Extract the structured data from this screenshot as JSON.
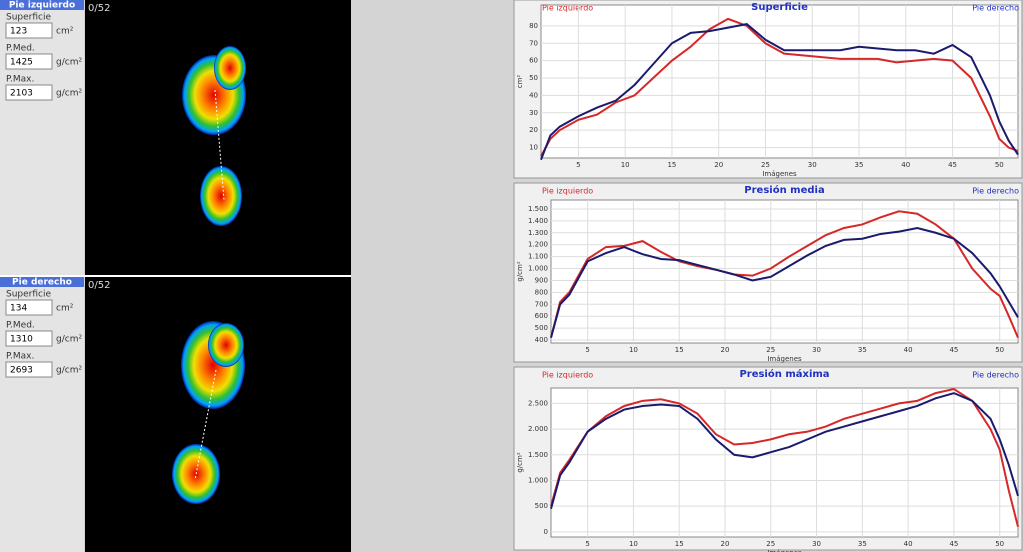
{
  "panels": [
    {
      "header": "Pie izquierdo",
      "frame_label": "0/52",
      "fields": [
        {
          "label": "Superficie",
          "value": 123,
          "unit": "cm²"
        },
        {
          "label": "P.Med.",
          "value": 1425,
          "unit": "g/cm²"
        },
        {
          "label": "P.Max.",
          "value": 2103,
          "unit": "g/cm²"
        }
      ]
    },
    {
      "header": "Pie derecho",
      "frame_label": "0/52",
      "fields": [
        {
          "label": "Superficie",
          "value": 134,
          "unit": "cm²"
        },
        {
          "label": "P.Med.",
          "value": 1310,
          "unit": "g/cm²"
        },
        {
          "label": "P.Max.",
          "value": 2693,
          "unit": "g/cm²"
        }
      ]
    }
  ],
  "chart_data": [
    {
      "type": "line",
      "title": "Superficie",
      "xlabel": "Imágenes",
      "ylabel": "cm²",
      "grid": true,
      "x": [
        1,
        2,
        3,
        5,
        7,
        9,
        11,
        13,
        15,
        17,
        19,
        21,
        23,
        25,
        27,
        29,
        31,
        33,
        35,
        37,
        39,
        41,
        43,
        45,
        47,
        49,
        50,
        51,
        52
      ],
      "xlim": [
        1,
        52
      ],
      "xticks": [
        5,
        10,
        15,
        20,
        25,
        30,
        35,
        40,
        45,
        50
      ],
      "ylim": [
        4,
        92
      ],
      "yticks": [
        10,
        20,
        30,
        40,
        50,
        60,
        70,
        80
      ],
      "series": [
        {
          "name": "Pie izquierdo",
          "color": "#d62828",
          "values": [
            5,
            15,
            20,
            26,
            29,
            36,
            40,
            50,
            60,
            68,
            78,
            84,
            80,
            70,
            64,
            63,
            62,
            61,
            61,
            61,
            59,
            60,
            61,
            60,
            50,
            28,
            15,
            10,
            8
          ]
        },
        {
          "name": "Pie derecho",
          "color": "#1a1a6e",
          "values": [
            3,
            17,
            22,
            28,
            33,
            37,
            46,
            58,
            70,
            76,
            77,
            79,
            81,
            72,
            66,
            66,
            66,
            66,
            68,
            67,
            66,
            66,
            64,
            69,
            62,
            40,
            25,
            14,
            6
          ]
        }
      ]
    },
    {
      "type": "line",
      "title": "Presión media",
      "xlabel": "Imágenes",
      "ylabel": "g/cm²",
      "grid": true,
      "x": [
        1,
        2,
        3,
        5,
        7,
        9,
        11,
        13,
        15,
        17,
        19,
        21,
        23,
        25,
        27,
        29,
        31,
        33,
        35,
        37,
        39,
        41,
        43,
        45,
        47,
        49,
        50,
        51,
        52
      ],
      "xlim": [
        1,
        52
      ],
      "xticks": [
        5,
        10,
        15,
        20,
        25,
        30,
        35,
        40,
        45,
        50
      ],
      "ylim": [
        375,
        1575
      ],
      "yticks": [
        400,
        500,
        600,
        700,
        800,
        900,
        {
          "value": 1000,
          "label": "1.000"
        },
        {
          "value": 1100,
          "label": "1.100"
        },
        {
          "value": 1200,
          "label": "1.200"
        },
        {
          "value": 1300,
          "label": "1.300"
        },
        {
          "value": 1400,
          "label": "1.400"
        },
        {
          "value": 1500,
          "label": "1.500"
        }
      ],
      "series": [
        {
          "name": "Pie izquierdo",
          "color": "#d62828",
          "values": [
            420,
            720,
            800,
            1080,
            1180,
            1190,
            1230,
            1140,
            1060,
            1020,
            990,
            950,
            940,
            1000,
            1100,
            1190,
            1280,
            1340,
            1370,
            1430,
            1480,
            1460,
            1370,
            1250,
            1000,
            830,
            770,
            600,
            420
          ]
        },
        {
          "name": "Pie derecho",
          "color": "#1a1a6e",
          "values": [
            420,
            700,
            780,
            1060,
            1130,
            1180,
            1120,
            1080,
            1070,
            1030,
            990,
            950,
            900,
            930,
            1020,
            1110,
            1190,
            1240,
            1250,
            1290,
            1310,
            1340,
            1300,
            1250,
            1130,
            960,
            850,
            720,
            590
          ]
        }
      ]
    },
    {
      "type": "line",
      "title": "Presión máxima",
      "xlabel": "Imágenes",
      "ylabel": "g/cm²",
      "grid": true,
      "x": [
        1,
        2,
        3,
        5,
        7,
        9,
        11,
        13,
        15,
        17,
        19,
        21,
        23,
        25,
        27,
        29,
        31,
        33,
        35,
        37,
        39,
        41,
        43,
        45,
        47,
        49,
        50,
        51,
        52
      ],
      "xlim": [
        1,
        52
      ],
      "xticks": [
        5,
        10,
        15,
        20,
        25,
        30,
        35,
        40,
        45,
        50
      ],
      "ylim": [
        -100,
        2800
      ],
      "yticks": [
        0,
        500,
        {
          "value": 1000,
          "label": "1.000"
        },
        {
          "value": 1500,
          "label": "1.500"
        },
        {
          "value": 2000,
          "label": "2.000"
        },
        {
          "value": 2500,
          "label": "2.500"
        }
      ],
      "series": [
        {
          "name": "Pie izquierdo",
          "color": "#d62828",
          "values": [
            500,
            1150,
            1400,
            1950,
            2250,
            2450,
            2550,
            2580,
            2500,
            2300,
            1900,
            1700,
            1730,
            1800,
            1900,
            1950,
            2050,
            2200,
            2300,
            2400,
            2500,
            2550,
            2700,
            2780,
            2550,
            2000,
            1600,
            800,
            100
          ]
        },
        {
          "name": "Pie derecho",
          "color": "#1a1a6e",
          "values": [
            450,
            1100,
            1350,
            1950,
            2200,
            2380,
            2450,
            2480,
            2450,
            2200,
            1800,
            1500,
            1450,
            1550,
            1650,
            1800,
            1950,
            2050,
            2150,
            2250,
            2350,
            2450,
            2600,
            2700,
            2550,
            2200,
            1800,
            1300,
            700
          ]
        }
      ]
    }
  ]
}
